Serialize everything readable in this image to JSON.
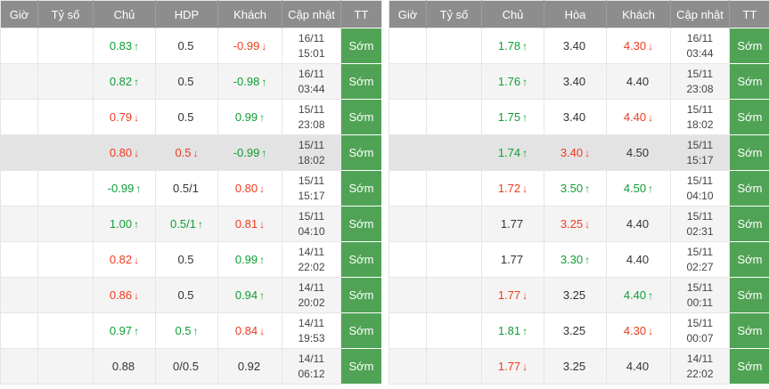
{
  "colors": {
    "header_bg": "#8d8d8d",
    "header_text": "#ffffff",
    "up_color": "#0e9e35",
    "down_color": "#ee3b1e",
    "status_bg": "#50a355",
    "status_text": "#ffffff",
    "row_alt_bg": "#f4f4f4",
    "row_highlight_bg": "#e3e3e3"
  },
  "left_table": {
    "headers": {
      "time": "Giờ",
      "score": "Tỷ số",
      "home": "Chủ",
      "mid": "HDP",
      "away": "Khách",
      "updated": "Cập nhật",
      "status": "TT"
    },
    "highlight_row": 3,
    "rows": [
      {
        "time": "",
        "score": "",
        "home": [
          "0.83",
          "up"
        ],
        "mid": [
          "0.5",
          ""
        ],
        "away": [
          "-0.99",
          "down"
        ],
        "updated": [
          "16/11",
          "15:01"
        ],
        "status": "Sớm"
      },
      {
        "time": "",
        "score": "",
        "home": [
          "0.82",
          "up"
        ],
        "mid": [
          "0.5",
          ""
        ],
        "away": [
          "-0.98",
          "up"
        ],
        "updated": [
          "16/11",
          "03:44"
        ],
        "status": "Sớm"
      },
      {
        "time": "",
        "score": "",
        "home": [
          "0.79",
          "down"
        ],
        "mid": [
          "0.5",
          ""
        ],
        "away": [
          "0.99",
          "up"
        ],
        "updated": [
          "15/11",
          "23:08"
        ],
        "status": "Sớm"
      },
      {
        "time": "",
        "score": "",
        "home": [
          "0.80",
          "down"
        ],
        "mid": [
          "0.5",
          "down"
        ],
        "away": [
          "-0.99",
          "up"
        ],
        "updated": [
          "15/11",
          "18:02"
        ],
        "status": "Sớm"
      },
      {
        "time": "",
        "score": "",
        "home": [
          "-0.99",
          "up"
        ],
        "mid": [
          "0.5/1",
          ""
        ],
        "away": [
          "0.80",
          "down"
        ],
        "updated": [
          "15/11",
          "15:17"
        ],
        "status": "Sớm"
      },
      {
        "time": "",
        "score": "",
        "home": [
          "1.00",
          "up"
        ],
        "mid": [
          "0.5/1",
          "up"
        ],
        "away": [
          "0.81",
          "down"
        ],
        "updated": [
          "15/11",
          "04:10"
        ],
        "status": "Sớm"
      },
      {
        "time": "",
        "score": "",
        "home": [
          "0.82",
          "down"
        ],
        "mid": [
          "0.5",
          ""
        ],
        "away": [
          "0.99",
          "up"
        ],
        "updated": [
          "14/11",
          "22:02"
        ],
        "status": "Sớm"
      },
      {
        "time": "",
        "score": "",
        "home": [
          "0.86",
          "down"
        ],
        "mid": [
          "0.5",
          ""
        ],
        "away": [
          "0.94",
          "up"
        ],
        "updated": [
          "14/11",
          "20:02"
        ],
        "status": "Sớm"
      },
      {
        "time": "",
        "score": "",
        "home": [
          "0.97",
          "up"
        ],
        "mid": [
          "0.5",
          "up"
        ],
        "away": [
          "0.84",
          "down"
        ],
        "updated": [
          "14/11",
          "19:53"
        ],
        "status": "Sớm"
      },
      {
        "time": "",
        "score": "",
        "home": [
          "0.88",
          ""
        ],
        "mid": [
          "0/0.5",
          ""
        ],
        "away": [
          "0.92",
          ""
        ],
        "updated": [
          "14/11",
          "06:12"
        ],
        "status": "Sớm"
      }
    ]
  },
  "right_table": {
    "headers": {
      "time": "Giờ",
      "score": "Tỷ số",
      "home": "Chủ",
      "mid": "Hòa",
      "away": "Khách",
      "updated": "Cập nhật",
      "status": "TT"
    },
    "highlight_row": 3,
    "rows": [
      {
        "time": "",
        "score": "",
        "home": [
          "1.78",
          "up"
        ],
        "mid": [
          "3.40",
          ""
        ],
        "away": [
          "4.30",
          "down"
        ],
        "updated": [
          "16/11",
          "03:44"
        ],
        "status": "Sớm"
      },
      {
        "time": "",
        "score": "",
        "home": [
          "1.76",
          "up"
        ],
        "mid": [
          "3.40",
          ""
        ],
        "away": [
          "4.40",
          ""
        ],
        "updated": [
          "15/11",
          "23:08"
        ],
        "status": "Sớm"
      },
      {
        "time": "",
        "score": "",
        "home": [
          "1.75",
          "up"
        ],
        "mid": [
          "3.40",
          ""
        ],
        "away": [
          "4.40",
          "down"
        ],
        "updated": [
          "15/11",
          "18:02"
        ],
        "status": "Sớm"
      },
      {
        "time": "",
        "score": "",
        "home": [
          "1.74",
          "up"
        ],
        "mid": [
          "3.40",
          "down"
        ],
        "away": [
          "4.50",
          ""
        ],
        "updated": [
          "15/11",
          "15:17"
        ],
        "status": "Sớm"
      },
      {
        "time": "",
        "score": "",
        "home": [
          "1.72",
          "down"
        ],
        "mid": [
          "3.50",
          "up"
        ],
        "away": [
          "4.50",
          "up"
        ],
        "updated": [
          "15/11",
          "04:10"
        ],
        "status": "Sớm"
      },
      {
        "time": "",
        "score": "",
        "home": [
          "1.77",
          ""
        ],
        "mid": [
          "3.25",
          "down"
        ],
        "away": [
          "4.40",
          ""
        ],
        "updated": [
          "15/11",
          "02:31"
        ],
        "status": "Sớm"
      },
      {
        "time": "",
        "score": "",
        "home": [
          "1.77",
          ""
        ],
        "mid": [
          "3.30",
          "up"
        ],
        "away": [
          "4.40",
          ""
        ],
        "updated": [
          "15/11",
          "02:27"
        ],
        "status": "Sớm"
      },
      {
        "time": "",
        "score": "",
        "home": [
          "1.77",
          "down"
        ],
        "mid": [
          "3.25",
          ""
        ],
        "away": [
          "4.40",
          "up"
        ],
        "updated": [
          "15/11",
          "00:11"
        ],
        "status": "Sớm"
      },
      {
        "time": "",
        "score": "",
        "home": [
          "1.81",
          "up"
        ],
        "mid": [
          "3.25",
          ""
        ],
        "away": [
          "4.30",
          "down"
        ],
        "updated": [
          "15/11",
          "00:07"
        ],
        "status": "Sớm"
      },
      {
        "time": "",
        "score": "",
        "home": [
          "1.77",
          "down"
        ],
        "mid": [
          "3.25",
          ""
        ],
        "away": [
          "4.40",
          ""
        ],
        "updated": [
          "14/11",
          "22:02"
        ],
        "status": "Sớm"
      }
    ]
  }
}
